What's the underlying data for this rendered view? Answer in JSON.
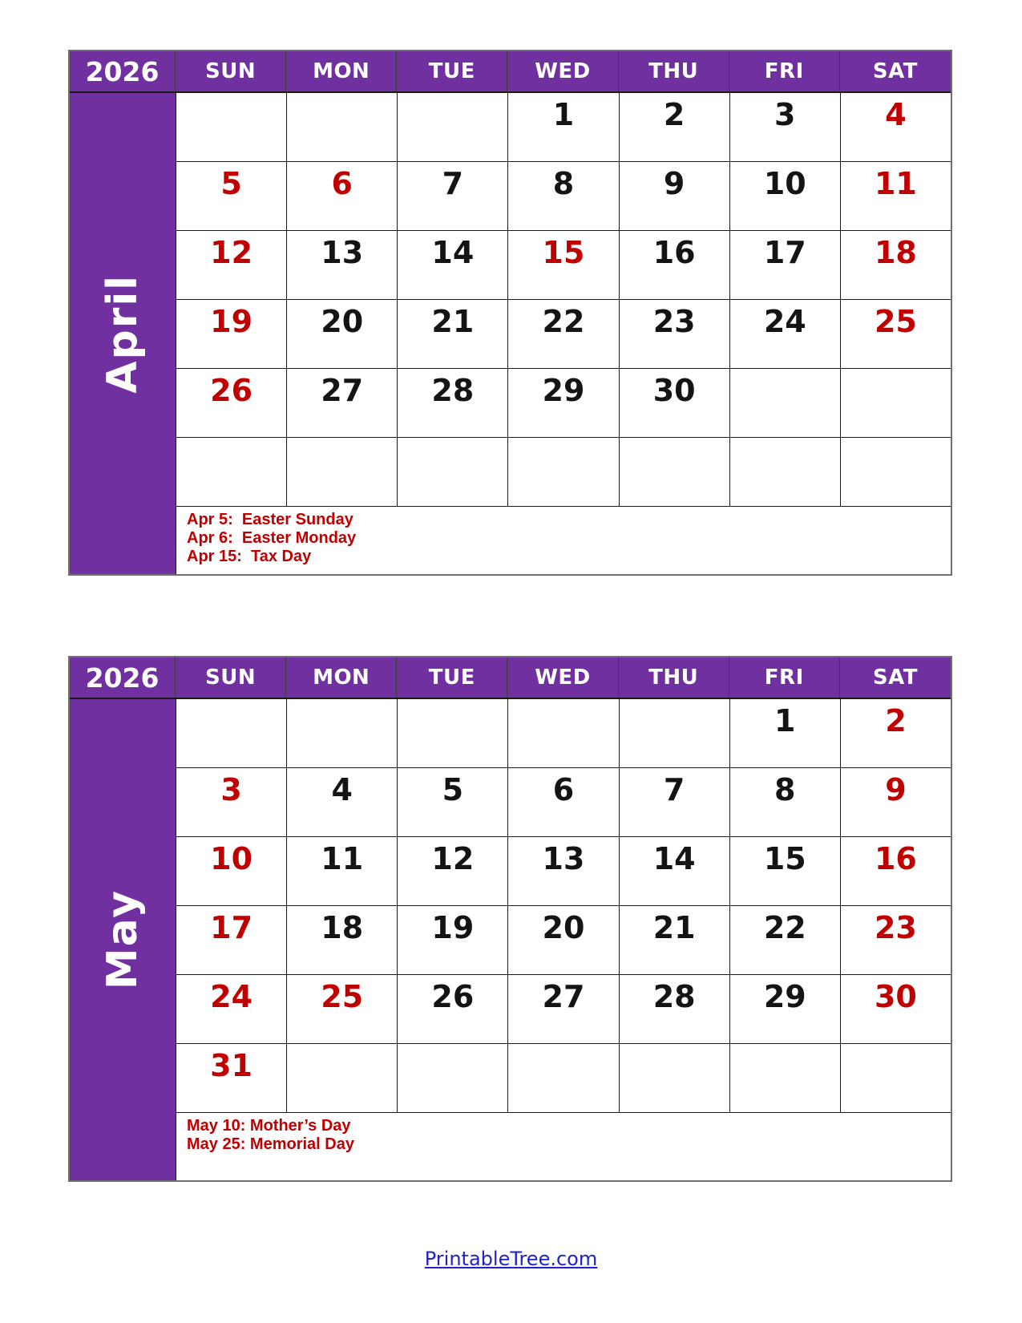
{
  "colors": {
    "header_purple": "#7030A0",
    "red_date": "#C00000",
    "black_date": "#141414",
    "holiday_text": "#C00000",
    "footer_blue": "#2121CE"
  },
  "weekday_headers": [
    "SUN",
    "MON",
    "TUE",
    "WED",
    "THU",
    "FRI",
    "SAT"
  ],
  "calendars": [
    {
      "id": "april",
      "year": "2026",
      "month_label": "April",
      "weeks": [
        [
          "",
          "",
          "",
          "1",
          "2",
          "3",
          "4"
        ],
        [
          "5",
          "6",
          "7",
          "8",
          "9",
          "10",
          "11"
        ],
        [
          "12",
          "13",
          "14",
          "15",
          "16",
          "17",
          "18"
        ],
        [
          "19",
          "20",
          "21",
          "22",
          "23",
          "24",
          "25"
        ],
        [
          "26",
          "27",
          "28",
          "29",
          "30",
          "",
          ""
        ],
        [
          "",
          "",
          "",
          "",
          "",
          "",
          ""
        ]
      ],
      "red_days": [
        4,
        5,
        6,
        11,
        12,
        15,
        18,
        19,
        25,
        26
      ],
      "holidays": [
        "Apr 5:  Easter Sunday",
        "Apr 6:  Easter Monday",
        "Apr 15:  Tax Day"
      ]
    },
    {
      "id": "may",
      "year": "2026",
      "month_label": "May",
      "weeks": [
        [
          "",
          "",
          "",
          "",
          "",
          "1",
          "2"
        ],
        [
          "3",
          "4",
          "5",
          "6",
          "7",
          "8",
          "9"
        ],
        [
          "10",
          "11",
          "12",
          "13",
          "14",
          "15",
          "16"
        ],
        [
          "17",
          "18",
          "19",
          "20",
          "21",
          "22",
          "23"
        ],
        [
          "24",
          "25",
          "26",
          "27",
          "28",
          "29",
          "30"
        ],
        [
          "31",
          "",
          "",
          "",
          "",
          "",
          ""
        ]
      ],
      "red_days": [
        2,
        3,
        9,
        10,
        16,
        17,
        23,
        24,
        25,
        30,
        31
      ],
      "holidays": [
        "May 10: Mother’s Day",
        "May 25: Memorial Day"
      ]
    }
  ],
  "footer": {
    "link_text": "PrintableTree.com"
  }
}
